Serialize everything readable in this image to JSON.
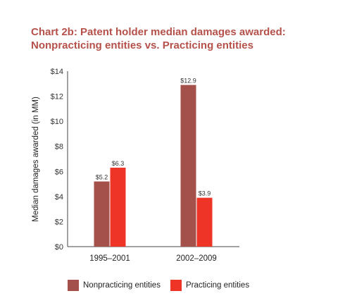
{
  "colors": {
    "title": "#b5514a",
    "nonpracticing": "#a4504b",
    "practicing": "#ee3427",
    "axis": "#444444"
  },
  "chart_data": {
    "type": "bar",
    "title_line1": "Chart 2b: Patent holder median damages awarded:",
    "title_line2": "Nonpracticing entities vs. Practicing entities",
    "ylabel": "Median damages awarded (in MM)",
    "xlabel": "",
    "categories": [
      "1995–2001",
      "2002–2009"
    ],
    "series": [
      {
        "name": "Nonpracticing entities",
        "values": [
          5.2,
          12.9
        ],
        "labels": [
          "$5.2",
          "$12.9"
        ]
      },
      {
        "name": "Practicing entities",
        "values": [
          6.3,
          3.9
        ],
        "labels": [
          "$6.3",
          "$3.9"
        ]
      }
    ],
    "ylim": [
      0,
      14
    ],
    "yticks": [
      0,
      2,
      4,
      6,
      8,
      10,
      12,
      14
    ],
    "ytick_labels": [
      "$0",
      "$2",
      "$4",
      "$6",
      "$8",
      "$10",
      "$12",
      "$14"
    ],
    "grid": false,
    "legend_position": "bottom"
  }
}
